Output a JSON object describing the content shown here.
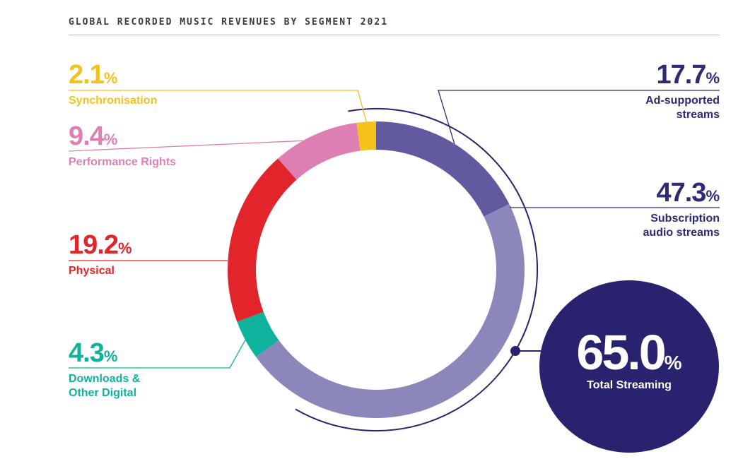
{
  "header": {
    "title": "GLOBAL RECORDED MUSIC REVENUES BY SEGMENT 2021"
  },
  "total_streaming": {
    "value": "65.0",
    "unit": "%",
    "label": "Total Streaming"
  },
  "colors": {
    "synchronisation": "#f5c11b",
    "performance_rights": "#dd7fb3",
    "physical": "#e2252b",
    "downloads": "#0fb29c",
    "subscription": "#8b87ba",
    "ad_supported": "#625a9f",
    "streaming_accent": "#29226f"
  },
  "chart_data": {
    "type": "pie",
    "title": "GLOBAL RECORDED MUSIC REVENUES BY SEGMENT 2021",
    "unit": "%",
    "slices": [
      {
        "key": "ad",
        "label": "Ad-supported streams",
        "pct": "17.7",
        "value": 17.7,
        "color": "#625a9f"
      },
      {
        "key": "sub",
        "label": "Subscription audio streams",
        "pct": "47.3",
        "value": 47.3,
        "color": "#8b87ba"
      },
      {
        "key": "dl",
        "label": "Downloads & Other Digital",
        "pct": "4.3",
        "value": 4.3,
        "color": "#0fb29c"
      },
      {
        "key": "phys",
        "label": "Physical",
        "pct": "19.2",
        "value": 19.2,
        "color": "#e2252b"
      },
      {
        "key": "perf",
        "label": "Performance Rights",
        "pct": "9.4",
        "value": 9.4,
        "color": "#dd7fb3"
      },
      {
        "key": "sync",
        "label": "Synchronisation",
        "pct": "2.1",
        "value": 2.1,
        "color": "#f5c11b"
      }
    ],
    "labels_display": {
      "ad": [
        "Ad-supported",
        "streams"
      ],
      "sub": [
        "Subscription",
        "audio streams"
      ],
      "dl": [
        "Downloads &",
        "Other Digital"
      ],
      "phys": [
        "Physical"
      ],
      "perf": [
        "Performance Rights"
      ],
      "sync": [
        "Synchronisation"
      ]
    }
  }
}
